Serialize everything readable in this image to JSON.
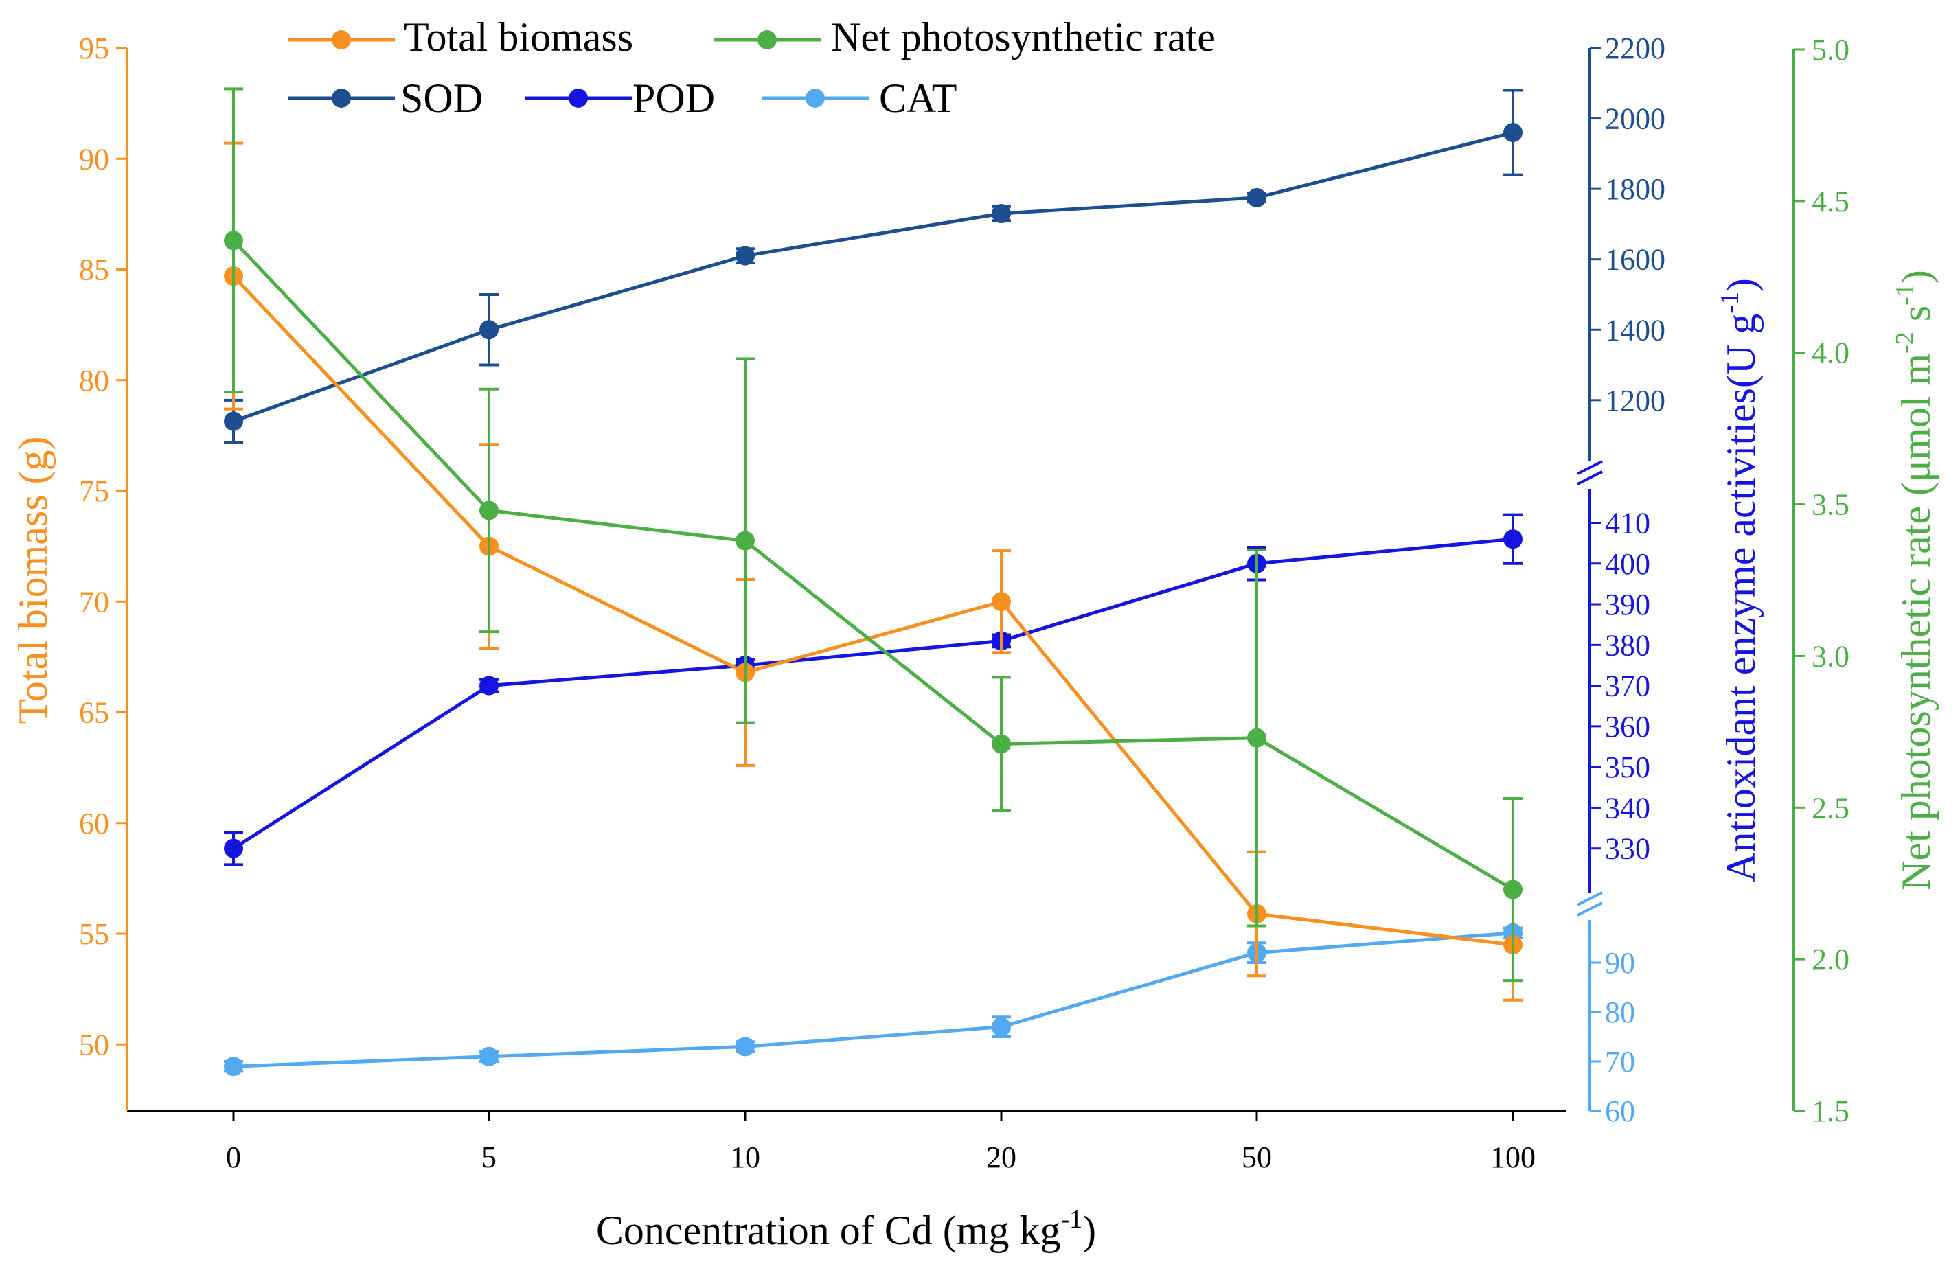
{
  "colors": {
    "biomass": "#F7901E",
    "photo": "#4CAF45",
    "sod": "#1D4E8F",
    "pod": "#1515E0",
    "cat": "#52A9F0",
    "axis_black": "#000000"
  },
  "chart_data": {
    "type": "line",
    "categories": [
      "0",
      "5",
      "10",
      "20",
      "50",
      "100"
    ],
    "xlabel_main": "Concentration of Cd (mg kg",
    "xlabel_sup": "-1",
    "xlabel_end": ")",
    "axes": {
      "biomass": {
        "label": "Total biomass (g)",
        "range": [
          47,
          95
        ],
        "ticks": [
          "50",
          "55",
          "60",
          "65",
          "70",
          "75",
          "80",
          "85",
          "90",
          "95"
        ]
      },
      "sod_segment": {
        "range": [
          1030,
          2200
        ],
        "ticks": [
          "1200",
          "1400",
          "1600",
          "1800",
          "2000",
          "2200"
        ]
      },
      "pod_segment": {
        "range": [
          320,
          417
        ],
        "ticks": [
          "330",
          "340",
          "350",
          "360",
          "370",
          "380",
          "390",
          "400",
          "410"
        ]
      },
      "cat_segment": {
        "range": [
          60,
          100
        ],
        "ticks": [
          "60",
          "70",
          "80",
          "90"
        ]
      },
      "enzyme_label_main": "Antioxidant enzyme activities(U g",
      "enzyme_label_sup": "-1",
      "enzyme_label_end": ")",
      "photo": {
        "label_main": "Net photosynthetic rate (μmol m",
        "label_sup1": "-2",
        "label_mid": " s",
        "label_sup2": "-1",
        "label_end": ")",
        "range": [
          1.5,
          5.0
        ],
        "ticks": [
          "1.5",
          "2.0",
          "2.5",
          "3.0",
          "3.5",
          "4.0",
          "4.5",
          "5.0"
        ]
      }
    },
    "series": [
      {
        "key": "sod",
        "name": "SOD",
        "axis": "sod_segment",
        "values": [
          1140,
          1400,
          1610,
          1730,
          1775,
          1960
        ],
        "errors": [
          60,
          100,
          20,
          20,
          12,
          120
        ]
      },
      {
        "key": "pod",
        "name": "POD",
        "axis": "pod_segment",
        "values": [
          330,
          370,
          375,
          381,
          400,
          406
        ],
        "errors": [
          4,
          1.5,
          1.5,
          1.5,
          4,
          6
        ]
      },
      {
        "key": "cat",
        "name": "CAT",
        "axis": "cat_segment",
        "values": [
          69,
          71,
          73,
          77,
          92,
          96
        ],
        "errors": [
          1,
          1,
          1,
          2,
          2,
          1
        ]
      },
      {
        "key": "biomass",
        "name": "Total biomass",
        "axis": "biomass",
        "values": [
          84.7,
          72.5,
          66.8,
          70.0,
          55.9,
          54.5
        ],
        "errors": [
          6,
          4.6,
          4.2,
          2.3,
          2.8,
          2.5
        ]
      },
      {
        "key": "photo",
        "name": "Net photosynthetic rate",
        "axis": "photo",
        "values": [
          4.37,
          3.48,
          3.38,
          2.71,
          2.73,
          2.23
        ],
        "errors": [
          0.5,
          0.4,
          0.6,
          0.22,
          0.62,
          0.3
        ]
      }
    ],
    "legend": {
      "placement": "top",
      "row1": [
        "Total biomass",
        "Net photosynthetic rate"
      ],
      "row2": [
        "SOD",
        "POD",
        "CAT"
      ]
    }
  }
}
